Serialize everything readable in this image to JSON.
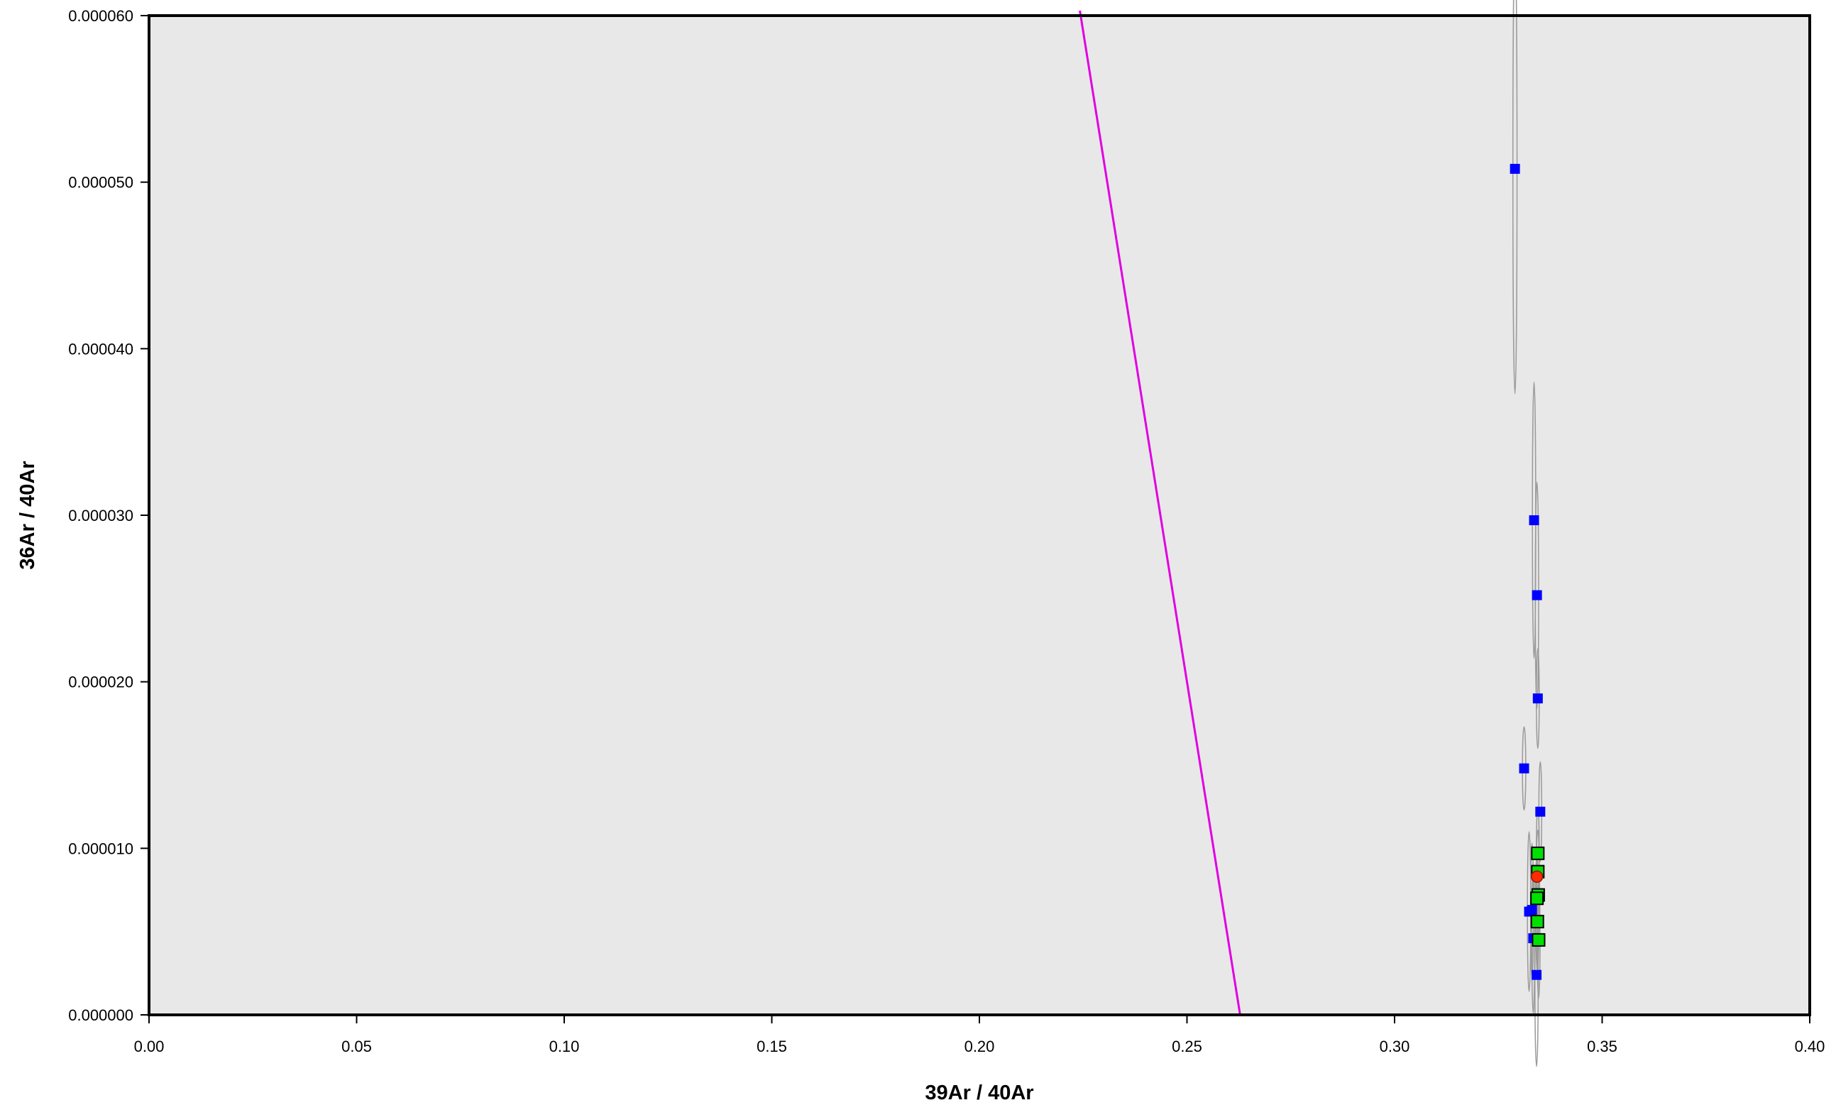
{
  "chart_data": {
    "type": "scatter",
    "title": "",
    "xlabel": "39Ar / 40Ar",
    "ylabel": "36Ar / 40Ar",
    "xlim": [
      0,
      0.4
    ],
    "ylim": [
      0,
      6e-05
    ],
    "x_ticks": [
      "0.00",
      "0.05",
      "0.10",
      "0.15",
      "0.20",
      "0.25",
      "0.30",
      "0.35",
      "0.40"
    ],
    "y_ticks": [
      "0.000000",
      "0.000010",
      "0.000020",
      "0.000030",
      "0.000040",
      "0.000050",
      "0.000060"
    ],
    "grid": false,
    "plot_background": "#e8e8e9",
    "colors": {
      "excluded": "#0000ff",
      "included": "#00e000",
      "mean": "#ff2a00",
      "ellipse": "#9a9a9a",
      "isochron": "#e000e0"
    },
    "isochron_line": {
      "points": [
        [
          0.2242,
          6.03e-05
        ],
        [
          0.2628,
          0.0
        ]
      ]
    },
    "series": [
      {
        "marker": "square",
        "color": "#0000ff",
        "points": [
          {
            "x": 0.329,
            "y": 5.08e-05,
            "sx": 0.0005,
            "sy": 1.35e-05
          },
          {
            "x": 0.3336,
            "y": 2.97e-05,
            "sx": 0.0004,
            "sy": 8.3e-06
          },
          {
            "x": 0.3343,
            "y": 2.52e-05,
            "sx": 0.0004,
            "sy": 6.8e-06
          },
          {
            "x": 0.3345,
            "y": 1.9e-05,
            "sx": 0.0003,
            "sy": 3e-06
          },
          {
            "x": 0.3312,
            "y": 1.48e-05,
            "sx": 0.0004,
            "sy": 2.5e-06
          },
          {
            "x": 0.3351,
            "y": 1.22e-05,
            "sx": 0.0003,
            "sy": 3e-06
          },
          {
            "x": 0.3324,
            "y": 6.2e-06,
            "sx": 0.0004,
            "sy": 4.8e-06
          },
          {
            "x": 0.3331,
            "y": 6.3e-06,
            "sx": 0.0003,
            "sy": 4e-06
          },
          {
            "x": 0.3334,
            "y": 4.6e-06,
            "sx": 0.0003,
            "sy": 4.5e-06
          },
          {
            "x": 0.3342,
            "y": 2.4e-06,
            "sx": 0.0004,
            "sy": 5.5e-06
          }
        ]
      },
      {
        "marker": "square",
        "color": "#00e000",
        "points": [
          {
            "x": 0.3345,
            "y": 9.7e-06,
            "sx": 0.0003,
            "sy": 2.8e-06
          },
          {
            "x": 0.3345,
            "y": 8.6e-06,
            "sx": 0.0003,
            "sy": 2.5e-06
          },
          {
            "x": 0.3346,
            "y": 7.2e-06,
            "sx": 0.0003,
            "sy": 2.5e-06
          },
          {
            "x": 0.3343,
            "y": 7e-06,
            "sx": 0.0003,
            "sy": 2.5e-06
          },
          {
            "x": 0.3344,
            "y": 5.6e-06,
            "sx": 0.0003,
            "sy": 3e-06
          },
          {
            "x": 0.3347,
            "y": 4.5e-06,
            "sx": 0.0003,
            "sy": 3.5e-06
          }
        ]
      },
      {
        "marker": "circle",
        "color": "#ff2a00",
        "points": [
          {
            "x": 0.3343,
            "y": 8.3e-06
          }
        ]
      }
    ]
  }
}
